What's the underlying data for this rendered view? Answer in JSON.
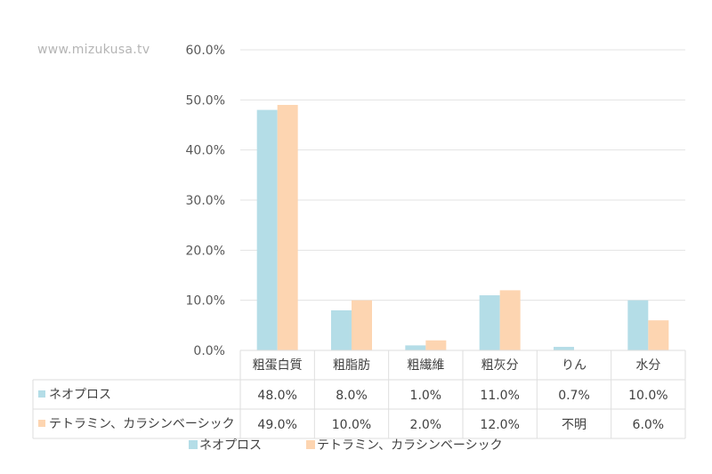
{
  "watermark": "www.mizukusa.tv",
  "chart_data": {
    "type": "bar",
    "categories": [
      "粗蛋白質",
      "粗脂肪",
      "粗繊維",
      "粗灰分",
      "りん",
      "水分"
    ],
    "series": [
      {
        "name": "ネオプロス",
        "values": [
          48.0,
          8.0,
          1.0,
          11.0,
          0.7,
          10.0
        ],
        "labels": [
          "48.0%",
          "8.0%",
          "1.0%",
          "11.0%",
          "0.7%",
          "10.0%"
        ],
        "color": "#b4dde7"
      },
      {
        "name": "テトラミン、カラシンベーシック",
        "values": [
          49.0,
          10.0,
          2.0,
          12.0,
          null,
          6.0
        ],
        "labels": [
          "49.0%",
          "10.0%",
          "2.0%",
          "12.0%",
          "不明",
          "6.0%"
        ],
        "color": "#fdd5b1"
      }
    ],
    "yticks": [
      "0.0%",
      "10.0%",
      "20.0%",
      "30.0%",
      "40.0%",
      "50.0%",
      "60.0%"
    ],
    "ylim": [
      0,
      60
    ],
    "grid": true,
    "legend": "bottom",
    "data_table": true
  }
}
